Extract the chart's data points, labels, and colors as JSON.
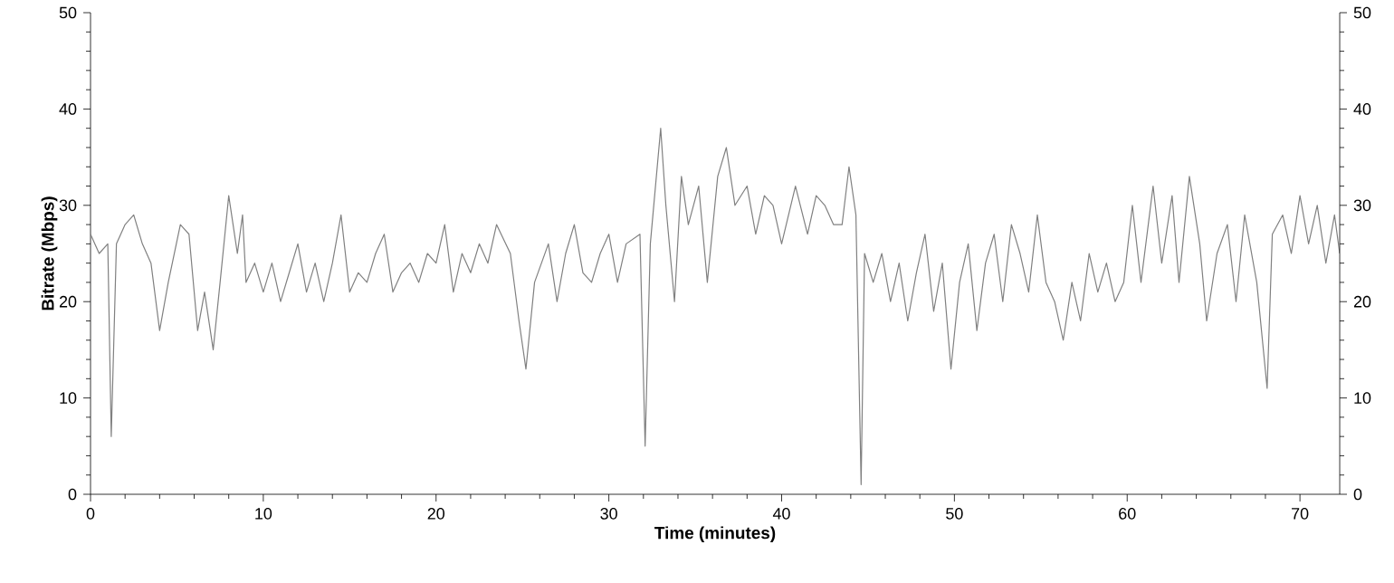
{
  "chart_data": {
    "type": "line",
    "xlabel": "Time (minutes)",
    "ylabel": "Bitrate (Mbps)",
    "xlim": [
      0,
      72.3
    ],
    "ylim": [
      0,
      50
    ],
    "xticks": [
      0,
      10,
      20,
      30,
      40,
      50,
      60,
      70
    ],
    "yticks": [
      0,
      10,
      20,
      30,
      40,
      50
    ],
    "y2lim": [
      0,
      50
    ],
    "y2ticks": [
      0,
      10,
      20,
      30,
      40,
      50
    ],
    "grid": false,
    "marker": "none",
    "line_style": "solid",
    "series": [
      {
        "color": "#808080",
        "x": [
          0,
          0.5,
          1.0,
          1.2,
          1.5,
          2.0,
          2.5,
          3.0,
          3.5,
          4.0,
          4.5,
          5.2,
          5.7,
          6.2,
          6.6,
          7.1,
          7.5,
          8.0,
          8.5,
          8.8,
          9.0,
          9.5,
          10.0,
          10.5,
          11.0,
          11.5,
          12.0,
          12.5,
          13.0,
          13.5,
          14.0,
          14.5,
          15.0,
          15.5,
          16.0,
          16.5,
          17.0,
          17.5,
          18.0,
          18.5,
          19.0,
          19.5,
          20.0,
          20.5,
          21.0,
          21.5,
          22.0,
          22.5,
          23.0,
          23.5,
          24.3,
          24.8,
          25.2,
          25.7,
          26.5,
          27.0,
          27.5,
          28.0,
          28.5,
          29.0,
          29.5,
          30.0,
          30.5,
          31.0,
          31.8,
          32.1,
          32.4,
          33.0,
          33.3,
          33.8,
          34.2,
          34.6,
          35.2,
          35.7,
          36.3,
          36.8,
          37.3,
          38.0,
          38.5,
          39.0,
          39.5,
          40.0,
          40.8,
          41.5,
          42.0,
          42.5,
          43.0,
          43.5,
          43.9,
          44.3,
          44.6,
          44.8,
          45.3,
          45.8,
          46.3,
          46.8,
          47.3,
          47.8,
          48.3,
          48.8,
          49.3,
          49.8,
          50.3,
          50.8,
          51.3,
          51.8,
          52.3,
          52.8,
          53.3,
          53.8,
          54.3,
          54.8,
          55.3,
          55.8,
          56.3,
          56.8,
          57.3,
          57.8,
          58.3,
          58.8,
          59.3,
          59.8,
          60.3,
          60.8,
          61.5,
          62.0,
          62.6,
          63.0,
          63.6,
          64.2,
          64.6,
          65.2,
          65.8,
          66.3,
          66.8,
          67.5,
          68.1,
          68.4,
          69.0,
          69.5,
          70.0,
          70.5,
          71.0,
          71.5,
          72.0,
          72.3
        ],
        "values": [
          27,
          25,
          26,
          6,
          26,
          28,
          29,
          26,
          24,
          17,
          22,
          28,
          27,
          17,
          21,
          15,
          22,
          31,
          25,
          29,
          22,
          24,
          21,
          24,
          20,
          23,
          26,
          21,
          24,
          20,
          24,
          29,
          21,
          23,
          22,
          25,
          27,
          21,
          23,
          24,
          22,
          25,
          24,
          28,
          21,
          25,
          23,
          26,
          24,
          28,
          25,
          18,
          13,
          22,
          26,
          20,
          25,
          28,
          23,
          22,
          25,
          27,
          22,
          26,
          27,
          5,
          26,
          38,
          30,
          20,
          33,
          28,
          32,
          22,
          33,
          36,
          30,
          32,
          27,
          31,
          30,
          26,
          32,
          27,
          31,
          30,
          28,
          28,
          34,
          29,
          1,
          25,
          22,
          25,
          20,
          24,
          18,
          23,
          27,
          19,
          24,
          13,
          22,
          26,
          17,
          24,
          27,
          20,
          28,
          25,
          21,
          29,
          22,
          20,
          16,
          22,
          18,
          25,
          21,
          24,
          20,
          22,
          30,
          22,
          32,
          24,
          31,
          22,
          33,
          26,
          18,
          25,
          28,
          20,
          29,
          22,
          11,
          27,
          29,
          25,
          31,
          26,
          30,
          24,
          29,
          25
        ]
      }
    ]
  }
}
